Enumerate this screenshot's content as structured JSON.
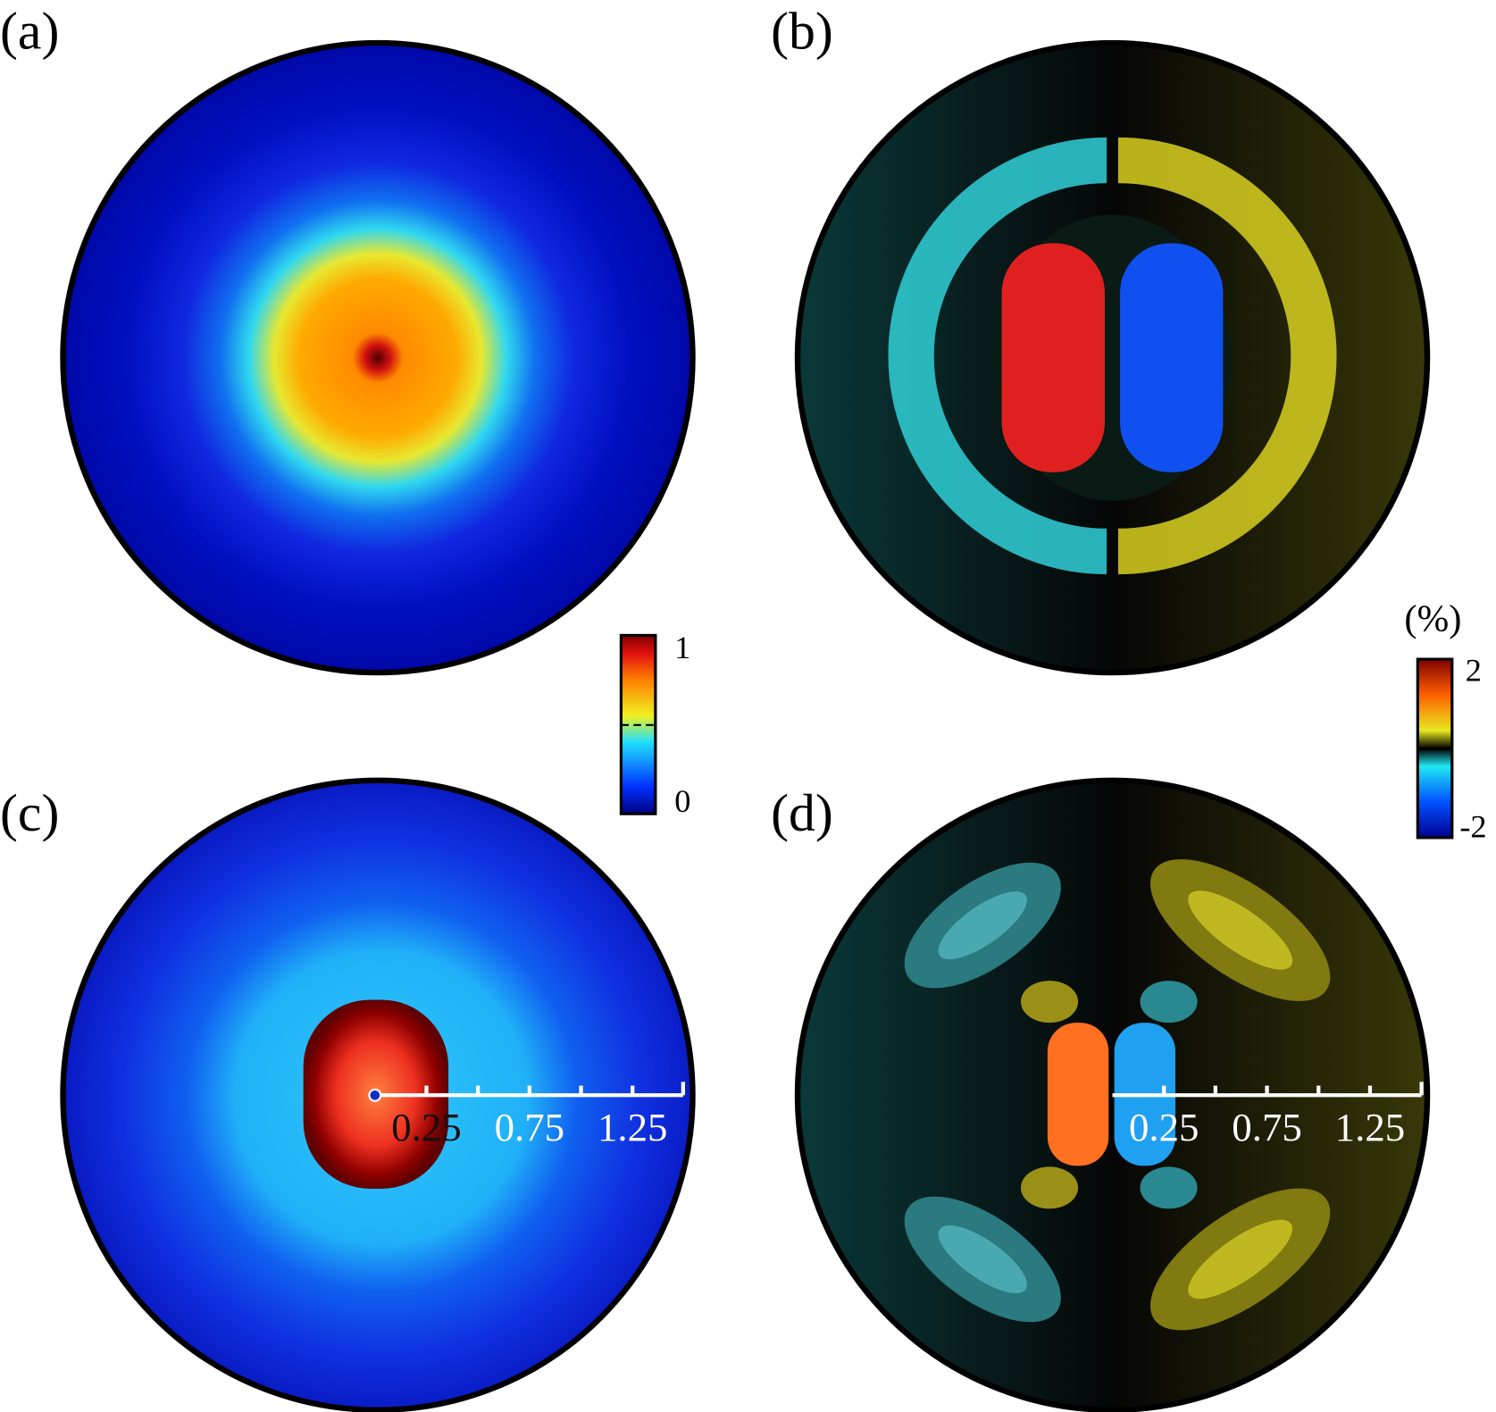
{
  "panels": [
    {
      "label": "(a)"
    },
    {
      "label": "(b)"
    },
    {
      "label": "(c)"
    },
    {
      "label": "(d)"
    }
  ],
  "colorbars": [
    {
      "ticks": [
        "1",
        "0"
      ]
    },
    {
      "title": "(%)",
      "ticks": [
        "2",
        "-2"
      ]
    }
  ],
  "scale_bars": [
    {
      "ticks": [
        "0.25",
        "0.75",
        "1.25"
      ]
    },
    {
      "ticks": [
        "0.25",
        "0.75",
        "1.25"
      ]
    }
  ]
}
